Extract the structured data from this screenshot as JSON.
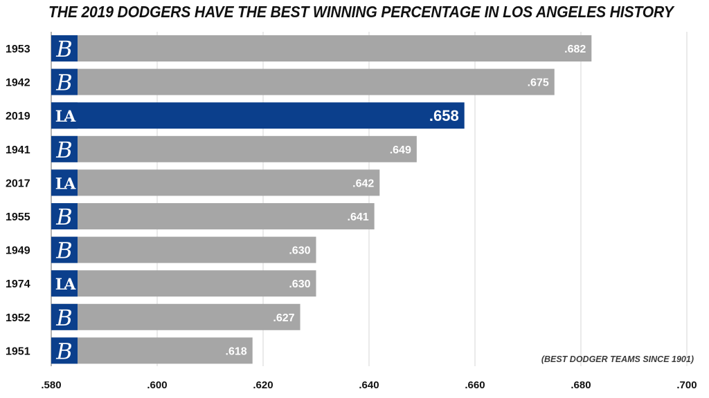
{
  "title": "THE 2019 DODGERS HAVE THE BEST WINNING PERCENTAGE IN LOS ANGELES HISTORY",
  "note": "(BEST DODGER TEAMS SINCE 1901)",
  "colors": {
    "highlight": "#0B3F8C",
    "bar": "#A6A6A6",
    "logo_bg": "#0B3F8C",
    "grid": "#D4D4D4"
  },
  "chart_data": {
    "type": "bar",
    "orientation": "horizontal",
    "title": "THE 2019 DODGERS HAVE THE BEST WINNING PERCENTAGE IN LOS ANGELES HISTORY",
    "xlabel": "",
    "ylabel": "",
    "xlim": [
      0.58,
      0.7
    ],
    "ticks": [
      0.58,
      0.6,
      0.62,
      0.64,
      0.66,
      0.68,
      0.7
    ],
    "tick_labels": [
      ".580",
      ".600",
      ".620",
      ".640",
      ".660",
      ".680",
      ".700"
    ],
    "grid": true,
    "categories": [
      "1953",
      "1942",
      "2019",
      "1941",
      "2017",
      "1955",
      "1949",
      "1974",
      "1952",
      "1951"
    ],
    "values": [
      0.682,
      0.675,
      0.658,
      0.649,
      0.642,
      0.641,
      0.63,
      0.63,
      0.627,
      0.618
    ],
    "value_labels": [
      ".682",
      ".675",
      ".658",
      ".649",
      ".642",
      ".641",
      ".630",
      ".630",
      ".627",
      ".618"
    ],
    "logos": [
      "B",
      "B",
      "LA",
      "B",
      "LA",
      "B",
      "B",
      "LA",
      "B",
      "B"
    ],
    "highlight": "2019"
  }
}
